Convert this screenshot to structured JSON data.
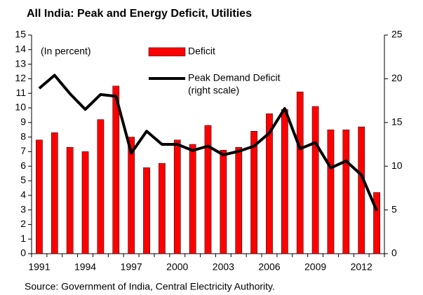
{
  "chart_data": {
    "type": "bar_line",
    "title": "All India: Peak and Energy Deficit, Utilities",
    "annotation": "(In percent)",
    "source": "Source: Government of India, Central Electricity Authority.",
    "categories": [
      "1991",
      null,
      null,
      "1994",
      null,
      null,
      "1997",
      null,
      null,
      "2000",
      null,
      null,
      "2003",
      null,
      null,
      "2006",
      null,
      null,
      "2009",
      null,
      null,
      "2012",
      null
    ],
    "series": [
      {
        "name": "Deficit",
        "type": "bar",
        "color": "#ff0000",
        "values": [
          7.8,
          8.3,
          7.3,
          7.0,
          9.2,
          11.5,
          8.0,
          5.9,
          6.2,
          7.8,
          7.5,
          8.8,
          7.1,
          7.3,
          8.4,
          9.6,
          9.9,
          11.1,
          10.1,
          8.5,
          8.5,
          8.7,
          4.2
        ]
      },
      {
        "name": "Peak Demand Deficit",
        "note": "(right scale)",
        "type": "line",
        "axis": "y2",
        "color": "#000000",
        "values": [
          18.9,
          20.4,
          18.3,
          16.5,
          18.2,
          18.0,
          11.5,
          14.0,
          12.5,
          12.5,
          11.8,
          12.3,
          11.3,
          11.7,
          12.3,
          13.8,
          16.6,
          12.0,
          12.7,
          9.8,
          10.6,
          9.0,
          4.9
        ]
      }
    ],
    "ylim": [
      0,
      15
    ],
    "yticks": [
      0,
      1,
      2,
      3,
      4,
      5,
      6,
      7,
      8,
      9,
      10,
      11,
      12,
      13,
      14,
      15
    ],
    "y2lim": [
      0,
      25
    ],
    "y2ticks": [
      0,
      5,
      10,
      15,
      20,
      25
    ],
    "grid": false
  }
}
